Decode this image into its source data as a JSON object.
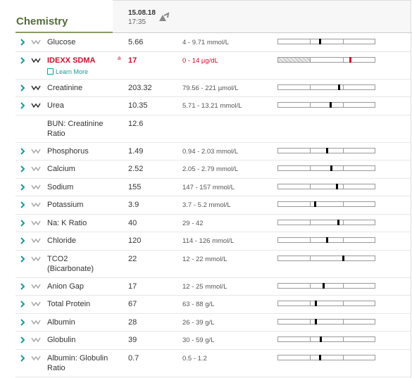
{
  "header": {
    "title": "Chemistry",
    "date": "15.08.18",
    "time": "17:35"
  },
  "rows": [
    {
      "name": "Glucose",
      "value": 5.66,
      "range": "4 - 9.71 mmol/L",
      "trend_color": "#aaa"
    },
    {
      "name": "IDEXX SDMA",
      "value": 17,
      "range": "0 - 14 µg/dL",
      "note": "a",
      "link": "Learn More",
      "color": "#c8102e",
      "trend_color": "#333"
    },
    {
      "name": "Creatinine",
      "value": 203.32,
      "range": "79.56 - 221 µmol/L",
      "trend_color": "#333"
    },
    {
      "name": "Urea",
      "value": 10.35,
      "range": "5.71 - 13.21 mmol/L",
      "trend_color": "#333"
    },
    {
      "name": "BUN: Creatinine Ratio",
      "value": 12.6
    },
    {
      "name": "Phosphorus",
      "value": 1.49,
      "range": "0.94 - 2.03 mmol/L",
      "trend_color": "#aaa"
    },
    {
      "name": "Calcium",
      "value": 2.52,
      "range": "2.05 - 2.79 mmol/L",
      "trend_color": "#aaa"
    },
    {
      "name": "Sodium",
      "value": 155,
      "range": "147 - 157 mmol/L",
      "trend_color": "#aaa"
    },
    {
      "name": "Potassium",
      "value": 3.9,
      "range": "3.7 - 5.2 mmol/L",
      "trend_color": "#aaa"
    },
    {
      "name": "Na: K Ratio",
      "value": 40,
      "range": "29 - 42",
      "trend_color": "#aaa"
    },
    {
      "name": "Chloride",
      "value": 120,
      "range": "114 - 126 mmol/L",
      "trend_color": "#aaa"
    },
    {
      "name": "TCO2 (Bicarbonate)",
      "value": 22,
      "range": "12 - 22 mmol/L",
      "trend_color": "#aaa"
    },
    {
      "name": "Anion Gap",
      "value": 17,
      "range": "12 - 25 mmol/L",
      "trend_color": "#aaa"
    },
    {
      "name": "Total Protein",
      "value": 67,
      "range": "63 - 88 g/L",
      "trend_color": "#aaa"
    },
    {
      "name": "Albumin",
      "value": 28,
      "range": "26 - 39 g/L",
      "trend_color": "#aaa"
    },
    {
      "name": "Globulin",
      "value": 39,
      "range": "30 - 59 g/L",
      "trend_color": "#aaa"
    },
    {
      "name": "Albumin: Globulin Ratio",
      "value": 0.7,
      "range": "0.5 - 1.2",
      "trend_color": "#aaa"
    }
  ]
}
